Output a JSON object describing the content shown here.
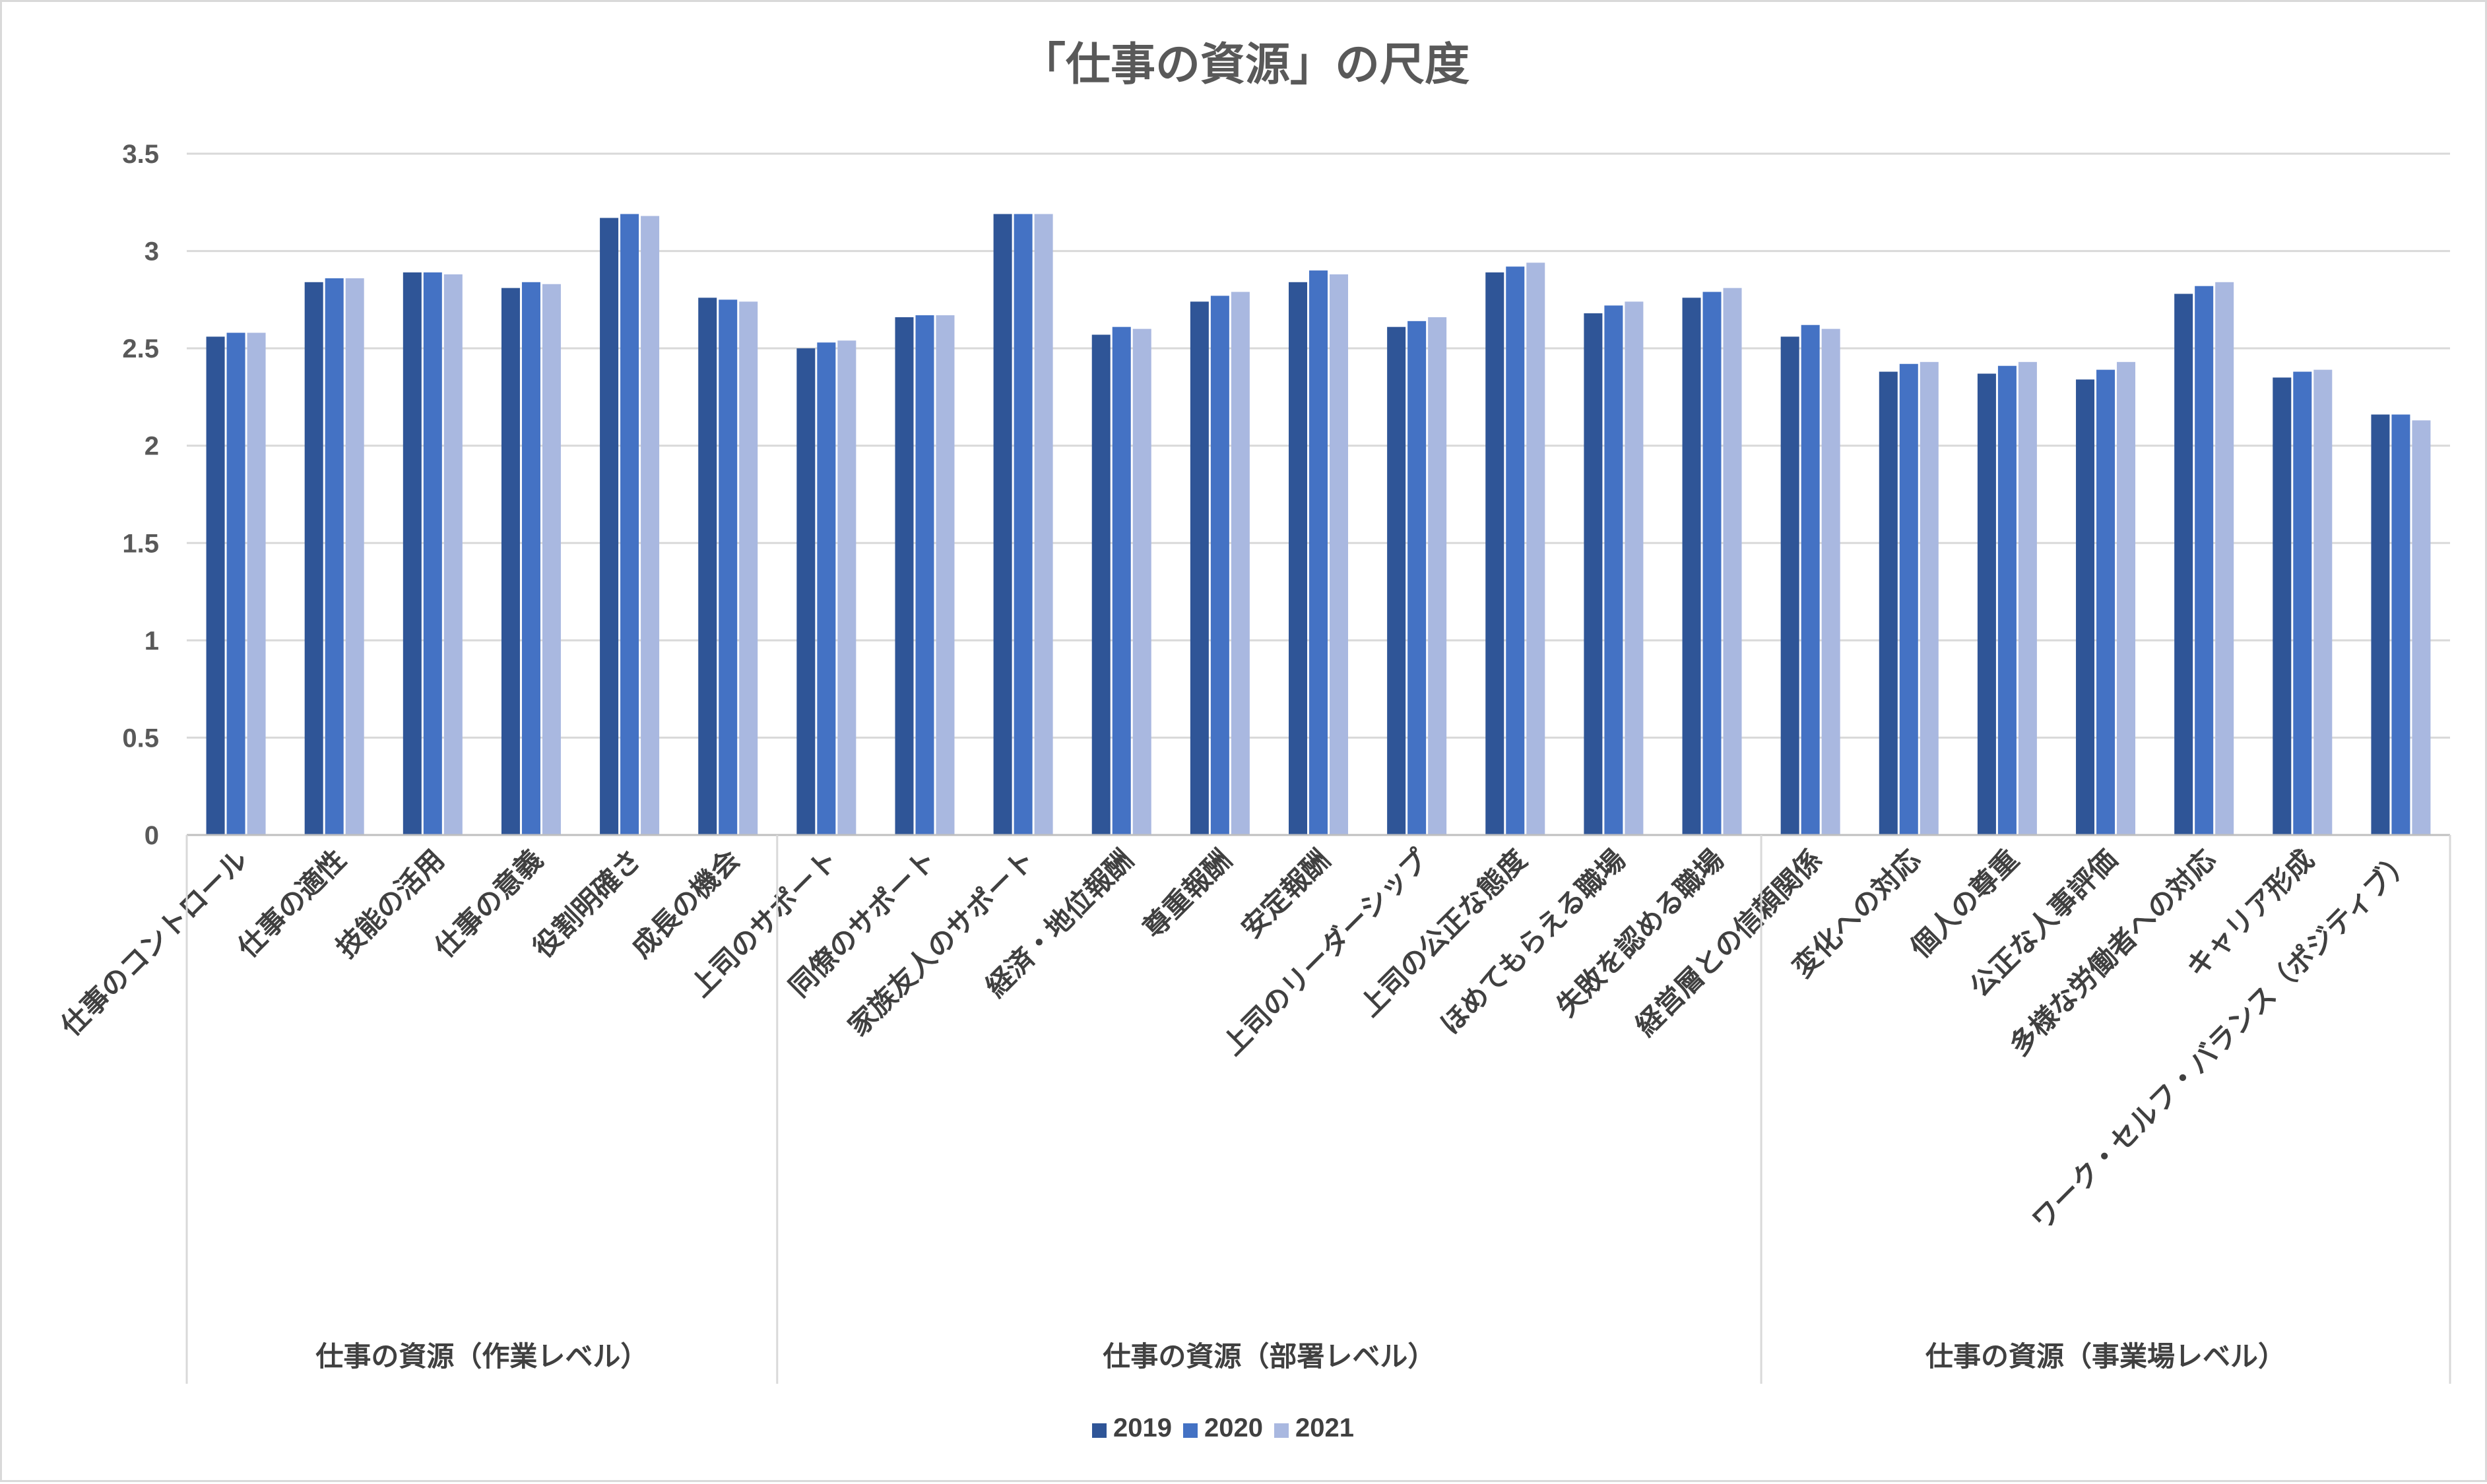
{
  "chart_data": {
    "type": "bar",
    "title": "「仕事の資源」の尺度",
    "categories": [
      "仕事のコントロール",
      "仕事の適性",
      "技能の活用",
      "仕事の意義",
      "役割明確さ",
      "成長の機会",
      "上司のサポート",
      "同僚のサポート",
      "家族友人のサポート",
      "経済・地位報酬",
      "尊重報酬",
      "安定報酬",
      "上司のリーダーシップ",
      "上司の公正な態度",
      "ほめてもらえる職場",
      "失敗を認める職場",
      "経営層との信頼関係",
      "変化への対応",
      "個人の尊重",
      "公正な人事評価",
      "多様な労働者への対応",
      "キャリア形成",
      "ワーク・セルフ・バランス（ポジティブ）"
    ],
    "groups": [
      {
        "label": "仕事の資源（作業レベル）",
        "count": 6
      },
      {
        "label": "仕事の資源（部署レベル）",
        "count": 10
      },
      {
        "label": "仕事の資源（事業場レベル）",
        "count": 7
      }
    ],
    "series": [
      {
        "name": "2019",
        "color": "#2f5597",
        "values": [
          2.56,
          2.84,
          2.89,
          2.81,
          3.17,
          2.76,
          2.5,
          2.66,
          3.19,
          2.57,
          2.74,
          2.84,
          2.61,
          2.89,
          2.68,
          2.76,
          2.56,
          2.38,
          2.37,
          2.34,
          2.78,
          2.35,
          2.16
        ]
      },
      {
        "name": "2020",
        "color": "#4472c4",
        "values": [
          2.58,
          2.86,
          2.89,
          2.84,
          3.19,
          2.75,
          2.53,
          2.67,
          3.19,
          2.61,
          2.77,
          2.9,
          2.64,
          2.92,
          2.72,
          2.79,
          2.62,
          2.42,
          2.41,
          2.39,
          2.82,
          2.38,
          2.16
        ]
      },
      {
        "name": "2021",
        "color": "#a9b8e0",
        "values": [
          2.58,
          2.86,
          2.88,
          2.83,
          3.18,
          2.74,
          2.54,
          2.67,
          3.19,
          2.6,
          2.79,
          2.88,
          2.66,
          2.94,
          2.74,
          2.81,
          2.6,
          2.43,
          2.43,
          2.43,
          2.84,
          2.39,
          2.13
        ]
      }
    ],
    "yticks": [
      "0",
      "0.5",
      "1",
      "1.5",
      "2",
      "2.5",
      "3",
      "3.5"
    ],
    "ylim": [
      0,
      3.5
    ],
    "grid": true,
    "legend": "bottom"
  }
}
